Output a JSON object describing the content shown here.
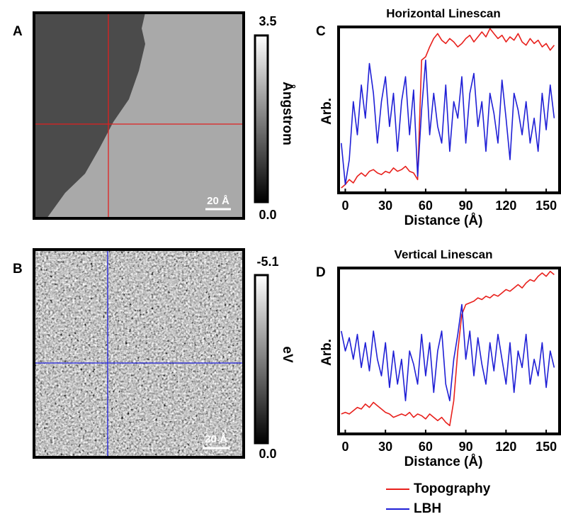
{
  "images": [
    {
      "label": "A",
      "colorbar": {
        "max": 3.5,
        "min": {
          "value": 0,
          "label": "0.0"
        },
        "unit": "Ångstrom"
      },
      "scale_bar": "20 Å"
    },
    {
      "label": "B",
      "colorbar": {
        "max": -5.1,
        "min": {
          "value": 0,
          "label": "0.0"
        },
        "unit": "eV"
      },
      "scale_bar": "20 Å"
    }
  ],
  "chart_data": [
    {
      "type": "line",
      "panel": "C",
      "title": "Horizontal Linescan",
      "xlabel": "Distance (Å)",
      "ylabel": "Arb.",
      "x": [
        -3,
        0,
        3,
        6,
        9,
        12,
        15,
        18,
        21,
        24,
        27,
        30,
        33,
        36,
        39,
        42,
        45,
        48,
        51,
        54,
        57,
        60,
        63,
        66,
        69,
        72,
        75,
        78,
        81,
        84,
        87,
        90,
        93,
        96,
        99,
        102,
        105,
        108,
        111,
        114,
        117,
        120,
        123,
        126,
        129,
        132,
        135,
        138,
        141,
        144,
        147,
        150,
        153,
        156
      ],
      "series": [
        {
          "name": "Topography",
          "color": "#e8201c",
          "values": [
            0.03,
            0.05,
            0.08,
            0.06,
            0.1,
            0.12,
            0.1,
            0.13,
            0.14,
            0.12,
            0.11,
            0.13,
            0.12,
            0.15,
            0.13,
            0.14,
            0.16,
            0.13,
            0.12,
            0.08,
            0.8,
            0.82,
            0.88,
            0.93,
            0.96,
            0.92,
            0.9,
            0.93,
            0.91,
            0.88,
            0.9,
            0.93,
            0.95,
            0.91,
            0.94,
            0.97,
            0.94,
            0.99,
            0.96,
            0.93,
            0.95,
            0.91,
            0.94,
            0.92,
            0.96,
            0.91,
            0.89,
            0.93,
            0.9,
            0.92,
            0.88,
            0.9,
            0.86,
            0.89
          ]
        },
        {
          "name": "LBH",
          "color": "#1f1fd6",
          "values": [
            0.3,
            0.05,
            0.2,
            0.55,
            0.35,
            0.65,
            0.45,
            0.78,
            0.6,
            0.3,
            0.55,
            0.7,
            0.4,
            0.6,
            0.25,
            0.55,
            0.7,
            0.35,
            0.62,
            0.1,
            0.5,
            0.8,
            0.35,
            0.6,
            0.4,
            0.3,
            0.65,
            0.25,
            0.55,
            0.45,
            0.7,
            0.3,
            0.6,
            0.72,
            0.4,
            0.55,
            0.25,
            0.6,
            0.48,
            0.3,
            0.68,
            0.45,
            0.2,
            0.6,
            0.5,
            0.35,
            0.55,
            0.3,
            0.45,
            0.25,
            0.6,
            0.38,
            0.65,
            0.45
          ]
        }
      ],
      "xlim": [
        -5,
        160
      ],
      "xticks": [
        0,
        30,
        60,
        90,
        120,
        150
      ],
      "ylim": [
        0,
        1
      ]
    },
    {
      "type": "line",
      "panel": "D",
      "title": "Vertical Linescan",
      "xlabel": "Distance (Å)",
      "ylabel": "Arb.",
      "x": [
        -3,
        0,
        3,
        6,
        9,
        12,
        15,
        18,
        21,
        24,
        27,
        30,
        33,
        36,
        39,
        42,
        45,
        48,
        51,
        54,
        57,
        60,
        63,
        66,
        69,
        72,
        75,
        78,
        81,
        84,
        87,
        90,
        93,
        96,
        99,
        102,
        105,
        108,
        111,
        114,
        117,
        120,
        123,
        126,
        129,
        132,
        135,
        138,
        141,
        144,
        147,
        150,
        153,
        156
      ],
      "series": [
        {
          "name": "Topography",
          "color": "#e8201c",
          "values": [
            0.12,
            0.13,
            0.12,
            0.14,
            0.16,
            0.15,
            0.18,
            0.16,
            0.19,
            0.17,
            0.15,
            0.13,
            0.12,
            0.1,
            0.11,
            0.12,
            0.11,
            0.13,
            0.1,
            0.12,
            0.11,
            0.09,
            0.12,
            0.1,
            0.08,
            0.1,
            0.07,
            0.05,
            0.2,
            0.5,
            0.72,
            0.78,
            0.79,
            0.8,
            0.82,
            0.81,
            0.83,
            0.82,
            0.84,
            0.83,
            0.85,
            0.87,
            0.86,
            0.88,
            0.9,
            0.88,
            0.91,
            0.93,
            0.92,
            0.95,
            0.97,
            0.95,
            0.98,
            0.96
          ]
        },
        {
          "name": "LBH",
          "color": "#1f1fd6",
          "values": [
            0.62,
            0.5,
            0.58,
            0.45,
            0.6,
            0.4,
            0.55,
            0.38,
            0.62,
            0.45,
            0.35,
            0.55,
            0.28,
            0.5,
            0.3,
            0.45,
            0.2,
            0.5,
            0.42,
            0.3,
            0.6,
            0.35,
            0.55,
            0.25,
            0.5,
            0.62,
            0.3,
            0.2,
            0.45,
            0.6,
            0.78,
            0.45,
            0.62,
            0.35,
            0.58,
            0.42,
            0.3,
            0.55,
            0.38,
            0.6,
            0.45,
            0.3,
            0.55,
            0.25,
            0.5,
            0.4,
            0.6,
            0.3,
            0.45,
            0.35,
            0.55,
            0.28,
            0.5,
            0.4
          ]
        }
      ],
      "xlim": [
        -5,
        160
      ],
      "xticks": [
        0,
        30,
        60,
        90,
        120,
        150
      ],
      "ylim": [
        0,
        1
      ]
    }
  ]
}
